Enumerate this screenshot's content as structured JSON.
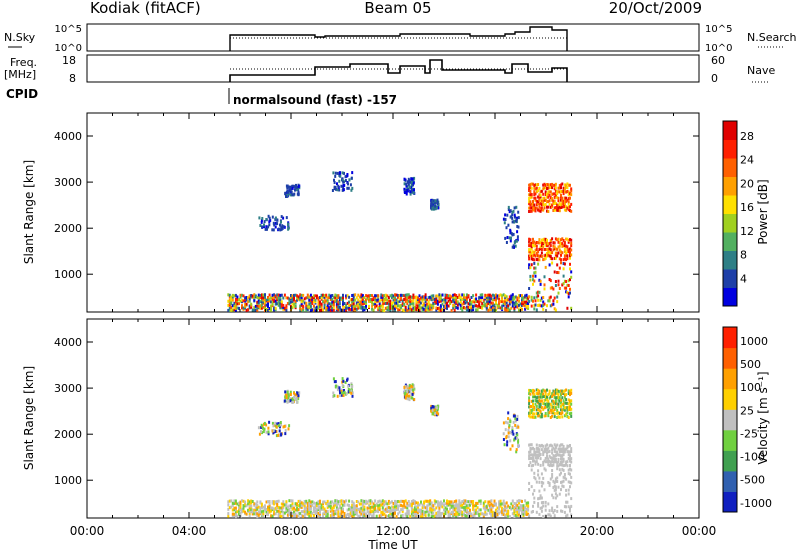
{
  "header": {
    "title": "Kodiak (fitACF)",
    "beam": "Beam 05",
    "date": "20/Oct/2009"
  },
  "top_panels": {
    "nsky_label": "N.Sky",
    "nsky_ticks": [
      "10^5",
      "10^0"
    ],
    "nsearch_label": "N.Search",
    "nsearch_ticks": [
      "10^5",
      "10^0"
    ],
    "freq_label_1": "Freq.",
    "freq_label_2": "[MHz]",
    "freq_ticks": [
      "18",
      "8"
    ],
    "nave_label": "Nave",
    "nave_ticks": [
      "60",
      "0"
    ],
    "cpid_label": "CPID",
    "cpid_text": "normalsound (fast) -157"
  },
  "chart_data": [
    {
      "type": "heatmap",
      "name": "power-panel",
      "title": "",
      "xlabel": "",
      "ylabel": "Slant Range [km]",
      "xlim": [
        0,
        24
      ],
      "ylim": [
        180,
        4500
      ],
      "x_tick_labels": [
        "00:00",
        "04:00",
        "08:00",
        "12:00",
        "16:00",
        "20:00",
        "00:00"
      ],
      "y_ticks": [
        1000,
        2000,
        3000,
        4000
      ],
      "colorbar": {
        "label": "Power [dB]",
        "ticks": [
          "4",
          "8",
          "12",
          "16",
          "20",
          "24",
          "28"
        ],
        "colors": [
          "#0000e0",
          "#1e3fa8",
          "#2e7f86",
          "#52b060",
          "#a0d020",
          "#ffe000",
          "#ffa000",
          "#ff6000",
          "#ff2000",
          "#e00000"
        ]
      },
      "data_start_hour": 5.5,
      "data_end_hour": 19.0
    },
    {
      "type": "heatmap",
      "name": "velocity-panel",
      "title": "",
      "xlabel": "Time UT",
      "ylabel": "Slant Range [km]",
      "xlim": [
        0,
        24
      ],
      "ylim": [
        180,
        4500
      ],
      "x_tick_labels": [
        "00:00",
        "04:00",
        "08:00",
        "12:00",
        "16:00",
        "20:00",
        "00:00"
      ],
      "y_ticks": [
        1000,
        2000,
        3000,
        4000
      ],
      "colorbar": {
        "label": "Velocity [m s⁻¹]",
        "ticks": [
          "1000",
          "500",
          "100",
          "25",
          "-25",
          "-100",
          "-500",
          "-1000"
        ],
        "colors": [
          "#1020c0",
          "#3060b0",
          "#40a050",
          "#70d040",
          "#c0c0c0",
          "#ffd000",
          "#ffa000",
          "#ff6000",
          "#ff2000"
        ]
      },
      "data_start_hour": 5.5,
      "data_end_hour": 19.0
    }
  ],
  "colors": {
    "axis": "#000000",
    "ground_scatter": "#c0c0c0"
  }
}
